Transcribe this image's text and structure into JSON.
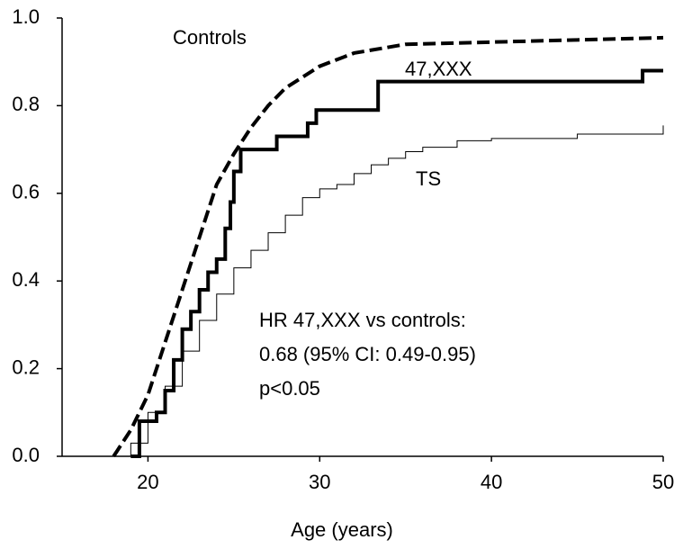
{
  "chart_data": {
    "type": "line",
    "x_label": "Age (years)",
    "xlim": [
      15,
      50
    ],
    "xticks": [
      20,
      30,
      40,
      50
    ],
    "ylim": [
      0,
      1
    ],
    "yticks": [
      {
        "value": 0,
        "label": "0.0"
      },
      0.2,
      0.4,
      0.6,
      0.8,
      {
        "value": 1,
        "label": "1.0"
      }
    ],
    "series": [
      {
        "name": "Controls",
        "color": "#000000",
        "dash": true,
        "width": 4,
        "steps": false,
        "x": [
          18,
          19,
          20,
          21,
          22,
          23,
          24,
          25,
          26,
          27,
          28,
          30,
          32,
          35,
          40,
          45,
          50
        ],
        "values": [
          0,
          0.06,
          0.14,
          0.26,
          0.38,
          0.5,
          0.62,
          0.69,
          0.75,
          0.8,
          0.84,
          0.89,
          0.92,
          0.94,
          0.945,
          0.95,
          0.955
        ]
      },
      {
        "name": "47,XXX",
        "color": "#000000",
        "dash": false,
        "width": 4,
        "steps": true,
        "x": [
          19,
          19.5,
          20.5,
          21,
          21.5,
          22,
          22.5,
          23,
          23.5,
          24,
          24.5,
          24.8,
          25,
          25.4,
          27.5,
          29.3,
          29.8,
          33.4,
          48.8,
          50
        ],
        "values": [
          0,
          0.08,
          0.1,
          0.15,
          0.22,
          0.29,
          0.33,
          0.38,
          0.42,
          0.45,
          0.52,
          0.58,
          0.65,
          0.7,
          0.73,
          0.76,
          0.79,
          0.855,
          0.88,
          0.88
        ]
      },
      {
        "name": "TS",
        "color": "#000000",
        "dash": false,
        "width": 1,
        "steps": true,
        "x": [
          18,
          19,
          20,
          21,
          22,
          23,
          24,
          25,
          26,
          27,
          28,
          29,
          30,
          31,
          32,
          33,
          34,
          35,
          36,
          38,
          40,
          45,
          50
        ],
        "values": [
          0,
          0.03,
          0.1,
          0.16,
          0.24,
          0.31,
          0.37,
          0.43,
          0.47,
          0.51,
          0.55,
          0.59,
          0.61,
          0.62,
          0.645,
          0.665,
          0.68,
          0.695,
          0.705,
          0.72,
          0.725,
          0.735,
          0.755
        ]
      }
    ],
    "annotations": [
      "HR 47,XXX vs controls:",
      "0.68 (95% CI: 0.49-0.95)",
      "p<0.05"
    ]
  }
}
